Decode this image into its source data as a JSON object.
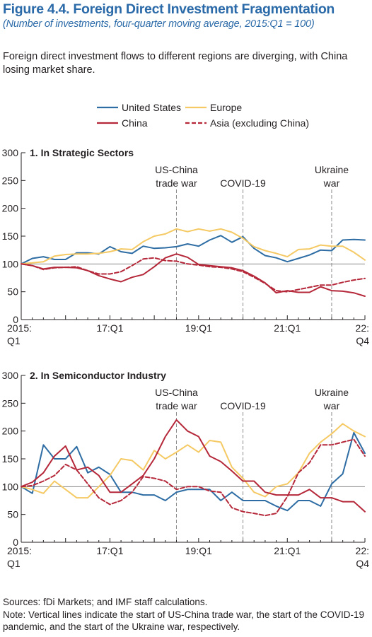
{
  "figure": {
    "title": "Figure 4.4.  Foreign Direct Investment Fragmentation",
    "subtitle": "(Number of investments, four-quarter moving average, 2015:Q1 = 100)",
    "description": "Foreign direct investment flows to different regions are diverging, with China losing market share.",
    "sources": "Sources: fDi Markets; and IMF staff calculations.",
    "note": "Note: Vertical lines indicate the start of US-China trade war, the start of the COVID-19 pandemic, and the start of the Ukraine war, respectively."
  },
  "legend": [
    {
      "name": "United States",
      "color": "#2e6da4",
      "dash": false
    },
    {
      "name": "Europe",
      "color": "#f5c963",
      "dash": false
    },
    {
      "name": "China",
      "color": "#b5283a",
      "dash": false
    },
    {
      "name": "Asia (excluding China)",
      "color": "#b5283a",
      "dash": true
    }
  ],
  "chart_data": [
    {
      "type": "line",
      "title": "1. In Strategic Sectors",
      "ylim": [
        0,
        300
      ],
      "yticks": [
        0,
        50,
        100,
        150,
        200,
        250,
        300
      ],
      "x_tick_labels": [
        {
          "index": 0,
          "line1": "2015:",
          "line2": "Q1"
        },
        {
          "index": 8,
          "line1": "17:Q1",
          "line2": ""
        },
        {
          "index": 16,
          "line1": "19:Q1",
          "line2": ""
        },
        {
          "index": 24,
          "line1": "21:Q1",
          "line2": ""
        },
        {
          "index": 31,
          "line1": "22:",
          "line2": "Q4"
        }
      ],
      "x": [
        "2015:Q1",
        "2015:Q2",
        "2015:Q3",
        "2015:Q4",
        "2016:Q1",
        "2016:Q2",
        "2016:Q3",
        "2016:Q4",
        "2017:Q1",
        "2017:Q2",
        "2017:Q3",
        "2017:Q4",
        "2018:Q1",
        "2018:Q2",
        "2018:Q3",
        "2018:Q4",
        "2019:Q1",
        "2019:Q2",
        "2019:Q3",
        "2019:Q4",
        "2020:Q1",
        "2020:Q2",
        "2020:Q3",
        "2020:Q4",
        "2021:Q1",
        "2021:Q2",
        "2021:Q3",
        "2021:Q4",
        "2022:Q1",
        "2022:Q2",
        "2022:Q3",
        "2022:Q4"
      ],
      "reference_lines": [
        {
          "index": 14,
          "label_line1": "US-China",
          "label_line2": "trade war"
        },
        {
          "index": 20,
          "label_line1": "COVID-19",
          "label_line2": ""
        },
        {
          "index": 28,
          "label_line1": "Ukraine",
          "label_line2": "war"
        }
      ],
      "series": [
        {
          "name": "United States",
          "values": [
            100,
            110,
            113,
            108,
            108,
            120,
            120,
            118,
            131,
            122,
            119,
            132,
            128,
            129,
            131,
            136,
            132,
            143,
            151,
            139,
            149,
            128,
            115,
            111,
            104,
            110,
            116,
            125,
            124,
            143,
            144,
            143
          ]
        },
        {
          "name": "Europe",
          "values": [
            100,
            102,
            104,
            114,
            117,
            118,
            118,
            119,
            122,
            127,
            126,
            140,
            150,
            154,
            163,
            158,
            163,
            159,
            163,
            157,
            146,
            131,
            124,
            119,
            113,
            126,
            127,
            134,
            132,
            132,
            121,
            107
          ]
        },
        {
          "name": "China",
          "values": [
            100,
            97,
            91,
            94,
            94,
            93,
            88,
            79,
            73,
            68,
            76,
            81,
            95,
            111,
            118,
            112,
            99,
            97,
            95,
            93,
            88,
            78,
            66,
            48,
            52,
            49,
            49,
            59,
            52,
            51,
            48,
            42
          ]
        },
        {
          "name": "Asia (excluding China)",
          "values": [
            100,
            97,
            90,
            93,
            94,
            95,
            88,
            82,
            82,
            86,
            97,
            109,
            111,
            106,
            105,
            100,
            98,
            95,
            94,
            91,
            86,
            76,
            65,
            52,
            50,
            54,
            58,
            62,
            62,
            67,
            71,
            74
          ]
        }
      ]
    },
    {
      "type": "line",
      "title": "2. In Semiconductor Industry",
      "ylim": [
        0,
        300
      ],
      "yticks": [
        0,
        50,
        100,
        150,
        200,
        250,
        300
      ],
      "x_tick_labels": [
        {
          "index": 0,
          "line1": "2015:",
          "line2": "Q1"
        },
        {
          "index": 8,
          "line1": "17:Q1",
          "line2": ""
        },
        {
          "index": 16,
          "line1": "19:Q1",
          "line2": ""
        },
        {
          "index": 24,
          "line1": "21:Q1",
          "line2": ""
        },
        {
          "index": 31,
          "line1": "22:",
          "line2": "Q4"
        }
      ],
      "x": [
        "2015:Q1",
        "2015:Q2",
        "2015:Q3",
        "2015:Q4",
        "2016:Q1",
        "2016:Q2",
        "2016:Q3",
        "2016:Q4",
        "2017:Q1",
        "2017:Q2",
        "2017:Q3",
        "2017:Q4",
        "2018:Q1",
        "2018:Q2",
        "2018:Q3",
        "2018:Q4",
        "2019:Q1",
        "2019:Q2",
        "2019:Q3",
        "2019:Q4",
        "2020:Q1",
        "2020:Q2",
        "2020:Q3",
        "2020:Q4",
        "2021:Q1",
        "2021:Q2",
        "2021:Q3",
        "2021:Q4",
        "2022:Q1",
        "2022:Q2",
        "2022:Q3",
        "2022:Q4"
      ],
      "reference_lines": [
        {
          "index": 14,
          "label_line1": "US-China",
          "label_line2": "trade war"
        },
        {
          "index": 20,
          "label_line1": "COVID-19",
          "label_line2": ""
        },
        {
          "index": 28,
          "label_line1": "Ukraine",
          "label_line2": "war"
        }
      ],
      "series": [
        {
          "name": "United States",
          "values": [
            100,
            88,
            175,
            150,
            150,
            172,
            125,
            135,
            122,
            90,
            90,
            85,
            85,
            75,
            90,
            95,
            95,
            95,
            75,
            90,
            75,
            75,
            75,
            65,
            57,
            75,
            75,
            65,
            105,
            123,
            197,
            160
          ]
        },
        {
          "name": "Europe",
          "values": [
            100,
            95,
            88,
            110,
            95,
            80,
            80,
            100,
            120,
            150,
            147,
            130,
            165,
            150,
            162,
            175,
            162,
            183,
            180,
            135,
            115,
            90,
            82,
            100,
            105,
            125,
            160,
            180,
            195,
            213,
            200,
            190
          ]
        },
        {
          "name": "China",
          "values": [
            100,
            108,
            125,
            155,
            173,
            130,
            135,
            120,
            90,
            90,
            105,
            120,
            150,
            190,
            220,
            200,
            190,
            155,
            145,
            128,
            110,
            110,
            90,
            85,
            85,
            85,
            95,
            80,
            80,
            73,
            73,
            55
          ]
        },
        {
          "name": "Asia (excluding China)",
          "values": [
            100,
            102,
            110,
            120,
            140,
            130,
            105,
            80,
            68,
            75,
            90,
            118,
            115,
            110,
            95,
            100,
            100,
            92,
            90,
            62,
            55,
            52,
            48,
            52,
            82,
            125,
            143,
            175,
            175,
            180,
            185,
            155
          ]
        }
      ]
    }
  ]
}
